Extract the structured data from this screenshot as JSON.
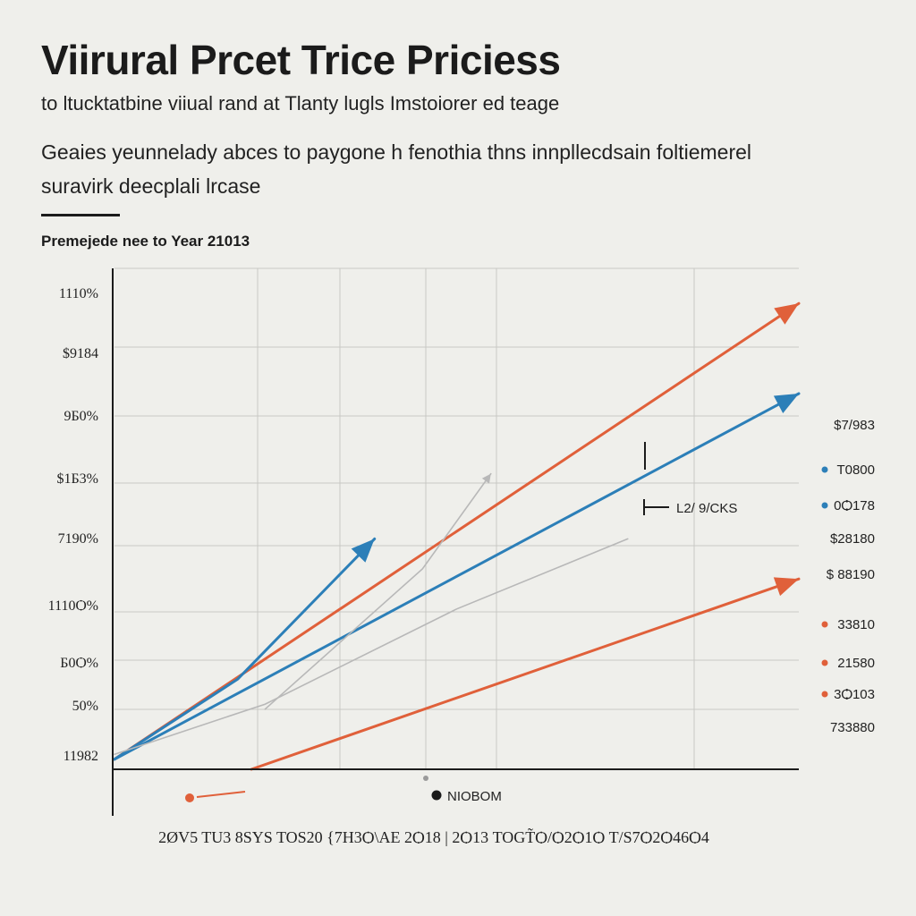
{
  "header": {
    "title": "Viirural Prcet Trice Priciess",
    "subtitle": "to ltucktatbine viiual  rand at Tlanty lugls Imstoiorer ed teage",
    "description_line1": "Geaies yeunnelady abces to paygone h fenothia thns innpllecdsain foltiemerel",
    "description_line2": "suravirk deecplali lrcase",
    "section_label": "Premejede nee to Year 21013"
  },
  "colors": {
    "orange": "#e0603a",
    "blue": "#2c7fb8",
    "gray": "#b8b8b8",
    "axis": "#1b1b1b",
    "grid": "#c9c9c4"
  },
  "chart_data": {
    "type": "line",
    "title": "Viirural Prcet Trice Priciess",
    "y_tick_labels": [
      "1110%",
      "$9184",
      "9Б0%",
      "$1Б3%",
      "7190%",
      "1110Ѻ%",
      "Б0Ѻ%",
      "50%",
      "11982"
    ],
    "right_labels": [
      {
        "text": "$7/983",
        "marker": "none"
      },
      {
        "text": "T0800",
        "marker": "blue"
      },
      {
        "text": "0Ѻ178",
        "marker": "blue"
      },
      {
        "text": "$28180",
        "marker": "none"
      },
      {
        "text": "$ 88190",
        "marker": "none"
      },
      {
        "text": "33810",
        "marker": "orange"
      },
      {
        "text": "21580",
        "marker": "orange"
      },
      {
        "text": "3Ѻ103",
        "marker": "orange"
      },
      {
        "text": "733880",
        "marker": "none"
      }
    ],
    "x_axis_label": "2ØV5 TU3 8SYS TOS20 {7H3Ѻ\\AE 2Ѻ18 | 2Ѻ13 TOGT̃Ѻ/Ѻ2Ѻ1Ѻ T/S7Ѻ2Ѻ46Ѻ4",
    "annotations": {
      "bracket_label": "L2/ 9/CKS",
      "bottom_label": "NIOBOM"
    },
    "xlim": [
      0,
      10
    ],
    "ylim": [
      0,
      10
    ],
    "series": [
      {
        "color": "orange",
        "points": [
          [
            0,
            0.2
          ],
          [
            10,
            9.3
          ]
        ],
        "arrow": true
      },
      {
        "color": "blue",
        "points": [
          [
            0,
            0.2
          ],
          [
            10,
            7.5
          ]
        ],
        "arrow": true
      },
      {
        "color": "blue",
        "points": [
          [
            0,
            0.2
          ],
          [
            1.8,
            1.8
          ],
          [
            3.8,
            4.6
          ]
        ],
        "arrow": true
      },
      {
        "color": "orange",
        "points": [
          [
            2,
            0
          ],
          [
            10,
            3.8
          ]
        ],
        "arrow": true
      },
      {
        "color": "gray",
        "points": [
          [
            0,
            0.3
          ],
          [
            2.2,
            1.3
          ],
          [
            5,
            3.2
          ],
          [
            7.5,
            4.6
          ]
        ],
        "arrow": false
      },
      {
        "color": "gray",
        "points": [
          [
            2.2,
            1.2
          ],
          [
            4.5,
            4.0
          ],
          [
            5.5,
            5.9
          ]
        ],
        "arrow": true
      }
    ]
  }
}
